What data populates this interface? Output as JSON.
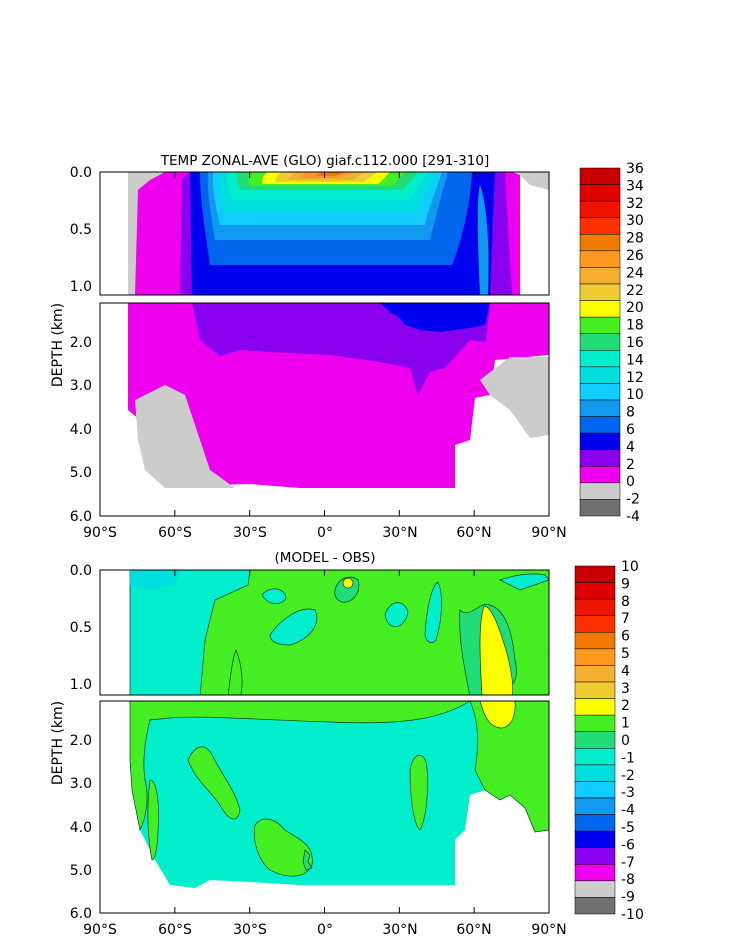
{
  "chart_data": [
    {
      "type": "contour",
      "title": "TEMP ZONAL-AVE (GLO) giaf.c112.000 [291-310]",
      "ylabel": "DEPTH (km)",
      "xlabel": "",
      "x_ticks": [
        "90°S",
        "60°S",
        "30°S",
        "0°",
        "30°N",
        "60°N",
        "90°N"
      ],
      "y_ticks_upper": [
        "0.0",
        "0.5",
        "1.0"
      ],
      "y_ticks_lower": [
        "2.0",
        "3.0",
        "4.0",
        "5.0",
        "6.0"
      ],
      "xlim": [
        -90,
        90
      ],
      "ylim_upper": [
        0,
        1.1
      ],
      "ylim_lower": [
        1.1,
        6.0
      ],
      "colorbar": {
        "labels": [
          "36",
          "34",
          "32",
          "30",
          "28",
          "26",
          "24",
          "22",
          "20",
          "18",
          "16",
          "14",
          "12",
          "10",
          "8",
          "6",
          "4",
          "2",
          "0",
          "-2",
          "-4"
        ],
        "colors": [
          "#c80000",
          "#e00000",
          "#f01500",
          "#ff3000",
          "#f07a00",
          "#ff9820",
          "#f5b030",
          "#f0cc30",
          "#ffff00",
          "#44ee22",
          "#22dd77",
          "#00eecc",
          "#00dddd",
          "#10ccff",
          "#1099ee",
          "#0066ee",
          "#0000ee",
          "#8800ee",
          "#ee00ee",
          "#cccccc",
          "#707070"
        ]
      }
    },
    {
      "type": "contour",
      "title": "(MODEL - OBS)",
      "ylabel": "DEPTH (km)",
      "xlabel": "",
      "x_ticks": [
        "90°S",
        "60°S",
        "30°S",
        "0°",
        "30°N",
        "60°N",
        "90°N"
      ],
      "y_ticks_upper": [
        "0.0",
        "0.5",
        "1.0"
      ],
      "y_ticks_lower": [
        "2.0",
        "3.0",
        "4.0",
        "5.0",
        "6.0"
      ],
      "xlim": [
        -90,
        90
      ],
      "ylim_upper": [
        0,
        1.1
      ],
      "ylim_lower": [
        1.1,
        6.0
      ],
      "colorbar": {
        "labels": [
          "10",
          "9",
          "8",
          "7",
          "6",
          "5",
          "4",
          "3",
          "2",
          "1",
          "0",
          "-1",
          "-2",
          "-3",
          "-4",
          "-5",
          "-6",
          "-7",
          "-8",
          "-9",
          "-10"
        ],
        "colors": [
          "#c80000",
          "#e00000",
          "#f01500",
          "#ff3000",
          "#f07a00",
          "#ff9820",
          "#f5b030",
          "#f0cc30",
          "#ffff00",
          "#44ee22",
          "#22dd77",
          "#00eecc",
          "#00dddd",
          "#10ccff",
          "#1099ee",
          "#0066ee",
          "#0000ee",
          "#8800ee",
          "#ee00ee",
          "#cccccc",
          "#707070"
        ]
      }
    }
  ]
}
